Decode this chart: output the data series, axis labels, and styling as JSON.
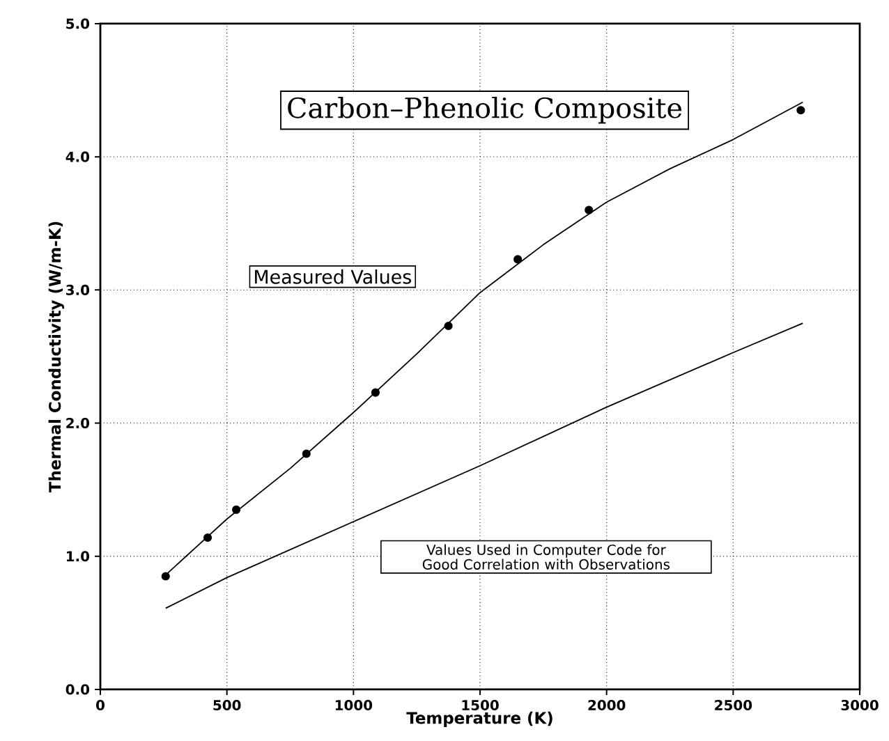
{
  "chart_data": {
    "type": "line",
    "title": "Carbon–Phenolic Composite",
    "xlabel": "Temperature (K)",
    "ylabel": "Thermal Conductivity (W/m-K)",
    "series": [
      {
        "type": "scatter",
        "color": "#000000",
        "marker": "circle",
        "x": [
          258,
          424,
          537,
          814,
          1087,
          1375,
          1649,
          1930,
          2767
        ],
        "values": [
          0.85,
          1.14,
          1.35,
          1.77,
          2.23,
          2.73,
          3.23,
          3.6,
          4.35
        ]
      },
      {
        "name": "Measured Values",
        "color": "#000000",
        "marker": "none",
        "x": [
          258,
          500,
          750,
          1000,
          1250,
          1500,
          1750,
          2000,
          2250,
          2500,
          2775
        ],
        "values": [
          0.86,
          1.28,
          1.66,
          2.08,
          2.52,
          2.98,
          3.34,
          3.66,
          3.91,
          4.13,
          4.41
        ]
      },
      {
        "name": "Values Used in Computer Code for Good Correlation with Observations",
        "color": "#000000",
        "marker": "none",
        "x": [
          258,
          500,
          1000,
          1500,
          2000,
          2500,
          2775
        ],
        "values": [
          0.61,
          0.84,
          1.26,
          1.68,
          2.12,
          2.53,
          2.75
        ]
      }
    ],
    "xlim": [
      0,
      3000
    ],
    "ylim": [
      0,
      5
    ],
    "xticks": [
      0,
      500,
      1000,
      1500,
      2000,
      2500,
      3000
    ],
    "yticks": [
      {
        "value": 0,
        "label": "0.0"
      },
      {
        "value": 1,
        "label": "1.0"
      },
      {
        "value": 2,
        "label": "2.0"
      },
      {
        "value": 3,
        "label": "3.0"
      },
      {
        "value": 4,
        "label": "4.0"
      },
      {
        "value": 5,
        "label": "5.0"
      }
    ],
    "grid": true
  }
}
